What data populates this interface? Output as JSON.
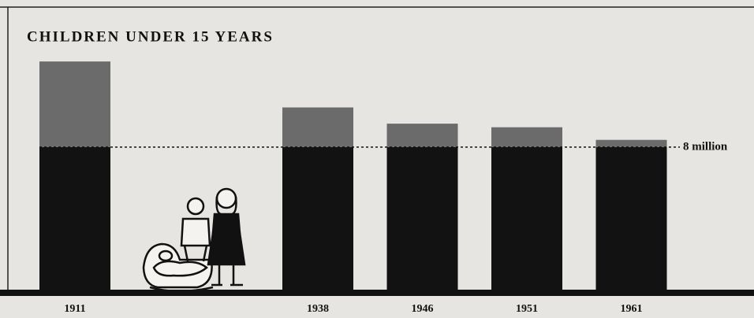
{
  "chart_data": {
    "type": "bar",
    "title": "CHILDREN UNDER 15 YEARS",
    "categories": [
      "1911",
      "1938",
      "1946",
      "1951",
      "1961"
    ],
    "values": [
      12.75,
      10.2,
      9.3,
      9.1,
      8.4
    ],
    "ylim": [
      0,
      14
    ],
    "colors": {
      "base": "#121212",
      "excess": "#6b6b6b"
    },
    "reference_line": {
      "value": 8,
      "label": "8 million"
    }
  }
}
